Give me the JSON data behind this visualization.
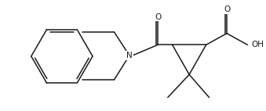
{
  "figsize": [
    3.39,
    1.42
  ],
  "dpi": 100,
  "bg_color": "#ffffff",
  "line_color": "#1a1a1a",
  "line_width": 1.1,
  "font_size": 7.0,
  "text_color": "#1a1a1a",
  "xlim": [
    0,
    10
  ],
  "ylim": [
    0,
    4.18
  ]
}
